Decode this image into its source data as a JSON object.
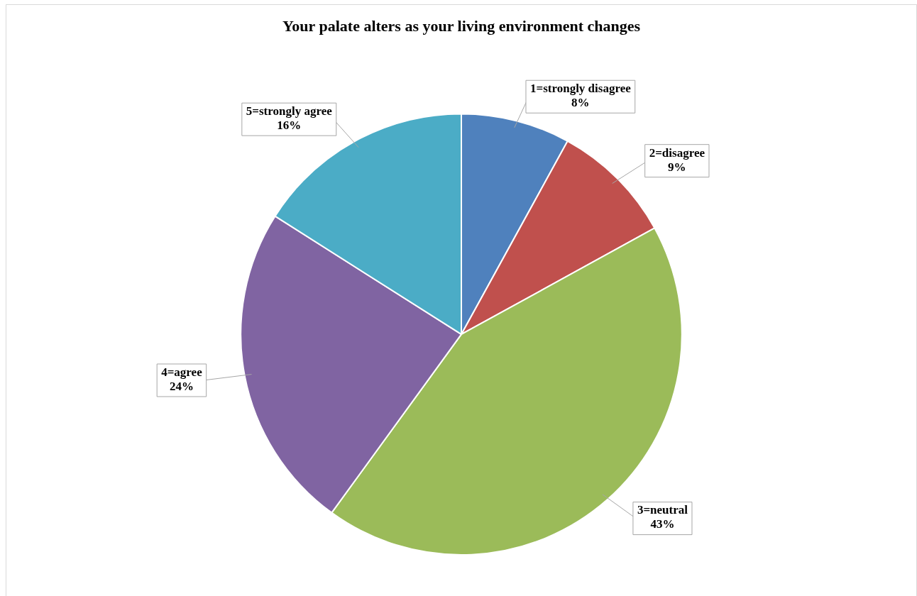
{
  "chart_data": {
    "type": "pie",
    "title": "Your palate alters as your living environment changes",
    "categories": [
      "1=strongly disagree",
      "2=disagree",
      "3=neutral",
      "4=agree",
      "5=strongly agree"
    ],
    "values": [
      8,
      9,
      43,
      24,
      16
    ],
    "value_labels": [
      "8%",
      "9%",
      "43%",
      "24%",
      "16%"
    ],
    "colors": [
      "#4f81bd",
      "#c0504d",
      "#9bbb59",
      "#8064a2",
      "#4bacc6"
    ],
    "legend": false
  }
}
